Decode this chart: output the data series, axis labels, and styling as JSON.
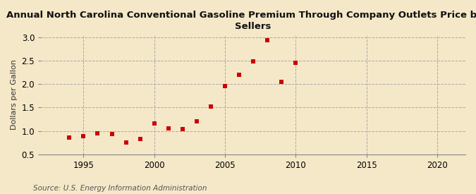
{
  "title": "Annual North Carolina Conventional Gasoline Premium Through Company Outlets Price by All\nSellers",
  "ylabel": "Dollars per Gallon",
  "source": "Source: U.S. Energy Information Administration",
  "background_color": "#f5e8c8",
  "plot_background_color": "#f5e8c8",
  "marker_color": "#cc0000",
  "marker": "s",
  "marker_size": 4,
  "xlim": [
    1992,
    2022
  ],
  "ylim": [
    0.5,
    3.05
  ],
  "xticks": [
    1995,
    2000,
    2005,
    2010,
    2015,
    2020
  ],
  "yticks": [
    0.5,
    1.0,
    1.5,
    2.0,
    2.5,
    3.0
  ],
  "years": [
    1994,
    1995,
    1996,
    1997,
    1998,
    1999,
    2000,
    2001,
    2002,
    2003,
    2004,
    2005,
    2006,
    2007,
    2008,
    2009,
    2010
  ],
  "values": [
    0.86,
    0.88,
    0.95,
    0.93,
    0.75,
    0.82,
    1.16,
    1.06,
    1.04,
    1.2,
    1.52,
    1.96,
    2.2,
    2.48,
    2.93,
    2.04,
    2.46
  ]
}
